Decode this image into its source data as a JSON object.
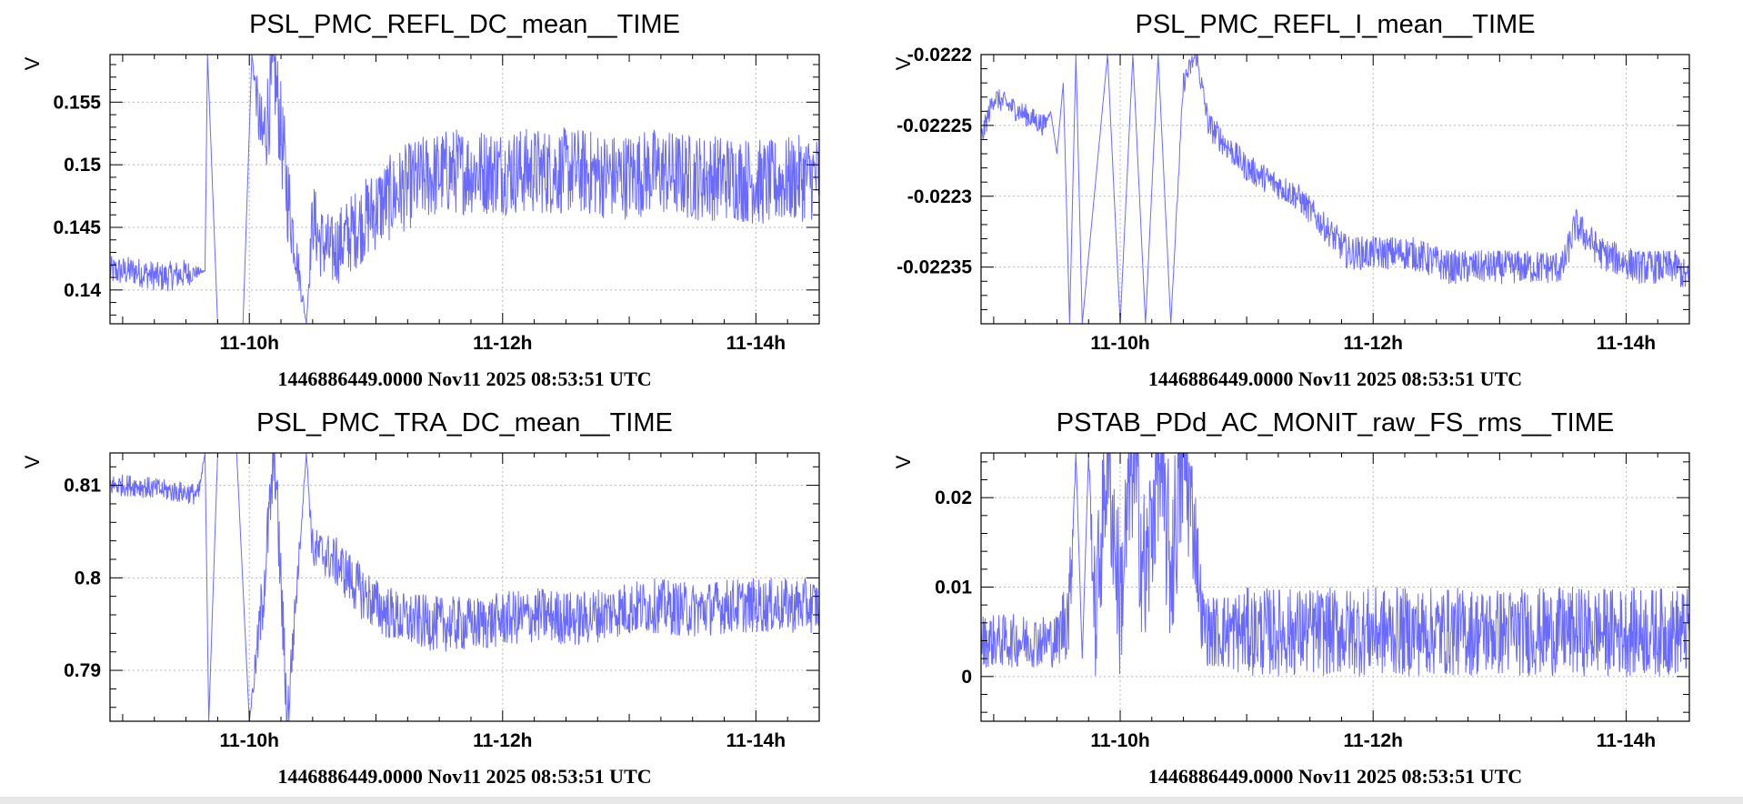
{
  "line_color": "#6a6aff",
  "grid_color": "#b8b8b8",
  "footer_text": "1446886449.0000 Nov11 2025 08:53:51 UTC",
  "chart_data": [
    {
      "type": "line",
      "title": "PSL_PMC_REFL_DC_mean__TIME",
      "ylabel": "V",
      "xlabel": "1446886449.0000 Nov11 2025 08:53:51 UTC",
      "x_ticks": [
        "11-10h",
        "11-12h",
        "11-14h"
      ],
      "x_tick_hours": [
        10,
        12,
        14
      ],
      "y_ticks": [
        "0.14",
        "0.145",
        "0.15",
        "0.155"
      ],
      "y_tick_values": [
        0.14,
        0.145,
        0.15,
        0.155
      ],
      "xlim_hours": [
        8.9,
        14.5
      ],
      "ylim": [
        0.1373,
        0.1588
      ],
      "grid": true,
      "series": [
        {
          "x_hours": [
            8.9,
            9.1,
            9.3,
            9.5,
            9.65,
            9.67,
            9.75,
            9.85,
            9.95,
            10.02,
            10.1,
            10.2,
            10.3,
            10.45,
            10.5,
            10.55,
            10.65,
            10.8,
            11.0,
            11.2,
            11.4,
            11.6,
            11.8,
            12.0,
            12.3,
            12.6,
            12.9,
            13.2,
            13.5,
            13.8,
            14.1,
            14.4,
            14.5
          ],
          "y": [
            0.1415,
            0.1415,
            0.141,
            0.1413,
            0.1415,
            0.1588,
            0.1373,
            0.1373,
            0.1373,
            0.1588,
            0.1515,
            0.1573,
            0.1478,
            0.1373,
            0.146,
            0.144,
            0.143,
            0.1445,
            0.1465,
            0.148,
            0.149,
            0.1495,
            0.1495,
            0.1495,
            0.1495,
            0.1495,
            0.149,
            0.1495,
            0.149,
            0.149,
            0.1485,
            0.149,
            0.149
          ],
          "noise": [
            0.0012,
            0.0012,
            0.0012,
            0.0012,
            0,
            0,
            0,
            0,
            0,
            0,
            0.004,
            0.004,
            0.004,
            0,
            0.003,
            0.003,
            0.003,
            0.0032,
            0.0034,
            0.0035,
            0.0035,
            0.0035,
            0.0035,
            0.0035,
            0.0035,
            0.0035,
            0.0035,
            0.0035,
            0.0035,
            0.0035,
            0.0035,
            0.0035,
            0.0035
          ]
        }
      ]
    },
    {
      "type": "line",
      "title": "PSL_PMC_REFL_I_mean__TIME",
      "ylabel": "V",
      "xlabel": "1446886449.0000 Nov11 2025 08:53:51 UTC",
      "x_ticks": [
        "11-10h",
        "11-12h",
        "11-14h"
      ],
      "x_tick_hours": [
        10,
        12,
        14
      ],
      "y_ticks": [
        "-0.02235",
        "-0.0223",
        "-0.02225",
        "-0.0222"
      ],
      "y_tick_values": [
        -0.02235,
        -0.0223,
        -0.02225,
        -0.0222
      ],
      "xlim_hours": [
        8.9,
        14.5
      ],
      "ylim": [
        -0.02239,
        -0.0222
      ],
      "grid": true,
      "series": [
        {
          "x_hours": [
            8.9,
            9.0,
            9.2,
            9.4,
            9.45,
            9.5,
            9.55,
            9.6,
            9.65,
            9.7,
            9.9,
            10.0,
            10.1,
            10.2,
            10.3,
            10.4,
            10.5,
            10.6,
            10.7,
            10.8,
            11.0,
            11.2,
            11.4,
            11.6,
            11.8,
            12.0,
            12.3,
            12.6,
            12.9,
            13.2,
            13.5,
            13.6,
            13.8,
            14.1,
            14.4,
            14.5
          ],
          "y": [
            -0.02226,
            -0.02223,
            -0.02224,
            -0.02225,
            -0.02224,
            -0.02227,
            -0.02222,
            -0.02239,
            -0.0222,
            -0.02239,
            -0.0222,
            -0.02239,
            -0.0222,
            -0.02239,
            -0.0222,
            -0.02239,
            -0.02222,
            -0.0222,
            -0.02225,
            -0.02226,
            -0.02228,
            -0.02229,
            -0.0223,
            -0.02232,
            -0.02234,
            -0.02234,
            -0.02234,
            -0.02235,
            -0.02235,
            -0.02235,
            -0.02235,
            -0.02232,
            -0.02234,
            -0.02235,
            -0.02235,
            -0.02236
          ],
          "noise": [
            8e-06,
            8e-06,
            8e-06,
            8e-06,
            0,
            0,
            0,
            0,
            0,
            0,
            0,
            0,
            0,
            0,
            0,
            0,
            8e-06,
            8e-06,
            1e-05,
            1e-05,
            1e-05,
            1e-05,
            1e-05,
            1e-05,
            1.2e-05,
            1.2e-05,
            1.2e-05,
            1.2e-05,
            1.2e-05,
            1.2e-05,
            1.2e-05,
            1.2e-05,
            1.2e-05,
            1.2e-05,
            1.2e-05,
            1.2e-05
          ]
        }
      ]
    },
    {
      "type": "line",
      "title": "PSL_PMC_TRA_DC_mean__TIME",
      "ylabel": "V",
      "xlabel": "1446886449.0000 Nov11 2025 08:53:51 UTC",
      "x_ticks": [
        "11-10h",
        "11-12h",
        "11-14h"
      ],
      "x_tick_hours": [
        10,
        12,
        14
      ],
      "y_ticks": [
        "0.79",
        "0.8",
        "0.81"
      ],
      "y_tick_values": [
        0.79,
        0.8,
        0.81
      ],
      "xlim_hours": [
        8.9,
        14.5
      ],
      "ylim": [
        0.7845,
        0.8135
      ],
      "grid": true,
      "series": [
        {
          "x_hours": [
            8.9,
            9.1,
            9.3,
            9.5,
            9.6,
            9.65,
            9.68,
            9.75,
            9.9,
            10.0,
            10.1,
            10.2,
            10.3,
            10.45,
            10.5,
            10.6,
            10.7,
            10.85,
            11.0,
            11.2,
            11.5,
            11.8,
            12.0,
            12.3,
            12.6,
            12.9,
            13.2,
            13.5,
            13.8,
            14.1,
            14.4,
            14.5
          ],
          "y": [
            0.81,
            0.81,
            0.8095,
            0.8092,
            0.809,
            0.8135,
            0.7845,
            0.8135,
            0.8135,
            0.7845,
            0.797,
            0.8135,
            0.7845,
            0.8135,
            0.803,
            0.8025,
            0.8015,
            0.799,
            0.797,
            0.7955,
            0.795,
            0.795,
            0.7955,
            0.796,
            0.7955,
            0.7965,
            0.797,
            0.7965,
            0.797,
            0.797,
            0.797,
            0.797
          ],
          "noise": [
            0.0012,
            0.0012,
            0.0012,
            0.0012,
            0.0012,
            0,
            0,
            0,
            0,
            0,
            0.004,
            0.004,
            0.004,
            0,
            0.0025,
            0.0025,
            0.0028,
            0.003,
            0.003,
            0.003,
            0.003,
            0.003,
            0.003,
            0.003,
            0.003,
            0.003,
            0.003,
            0.003,
            0.003,
            0.003,
            0.003,
            0.003
          ]
        }
      ]
    },
    {
      "type": "line",
      "title": "PSTAB_PDd_AC_MONIT_raw_FS_rms__TIME",
      "ylabel": "V",
      "xlabel": "1446886449.0000 Nov11 2025 08:53:51 UTC",
      "x_ticks": [
        "11-10h",
        "11-12h",
        "11-14h"
      ],
      "x_tick_hours": [
        10,
        12,
        14
      ],
      "y_ticks": [
        "0",
        "0.01",
        "0.02"
      ],
      "y_tick_values": [
        0,
        0.01,
        0.02
      ],
      "xlim_hours": [
        8.9,
        14.5
      ],
      "ylim": [
        -0.005,
        0.025
      ],
      "grid": true,
      "series": [
        {
          "x_hours": [
            8.9,
            9.2,
            9.5,
            9.6,
            9.65,
            9.7,
            9.75,
            9.8,
            9.9,
            10.0,
            10.1,
            10.2,
            10.3,
            10.4,
            10.5,
            10.6,
            10.65,
            10.7,
            11.0,
            11.5,
            12.0,
            12.5,
            13.0,
            13.5,
            14.0,
            14.5
          ],
          "y": [
            0.004,
            0.004,
            0.004,
            0.008,
            0.025,
            0.002,
            0.025,
            0.006,
            0.025,
            0.008,
            0.025,
            0.01,
            0.025,
            0.012,
            0.025,
            0.015,
            0.006,
            0.005,
            0.005,
            0.005,
            0.005,
            0.005,
            0.005,
            0.005,
            0.005,
            0.005
          ],
          "noise": [
            0.003,
            0.003,
            0.003,
            0.006,
            0,
            0,
            0,
            0.008,
            0.009,
            0.009,
            0.01,
            0.01,
            0.01,
            0.01,
            0.01,
            0.006,
            0.004,
            0.004,
            0.005,
            0.005,
            0.005,
            0.005,
            0.005,
            0.005,
            0.005,
            0.005
          ]
        }
      ]
    }
  ]
}
